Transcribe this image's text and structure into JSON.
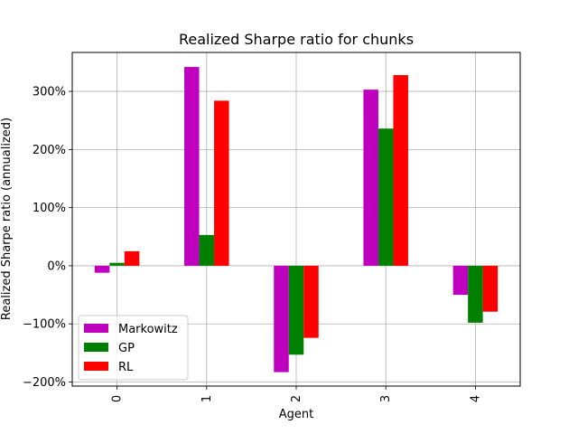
{
  "chart_data": {
    "type": "bar",
    "title": "Realized Sharpe ratio for chunks",
    "xlabel": "Agent",
    "ylabel": "Realized Sharpe ratio (annualized)",
    "categories": [
      "0",
      "1",
      "2",
      "3",
      "4"
    ],
    "series": [
      {
        "name": "Markowitz",
        "color": "#bf00bf",
        "values": [
          -12,
          342,
          -183,
          303,
          -50
        ]
      },
      {
        "name": "GP",
        "color": "#008000",
        "values": [
          5,
          53,
          -153,
          236,
          -98
        ]
      },
      {
        "name": "RL",
        "color": "#ff0000",
        "values": [
          25,
          284,
          -124,
          328,
          -79
        ]
      }
    ],
    "ylim": [
      -207,
      367
    ],
    "yticks": [
      -200,
      -100,
      0,
      100,
      200,
      300
    ],
    "ytick_labels": [
      "−200%",
      "−100%",
      "0%",
      "100%",
      "200%",
      "300%"
    ],
    "grid": true,
    "legend_position": "lower-left"
  }
}
